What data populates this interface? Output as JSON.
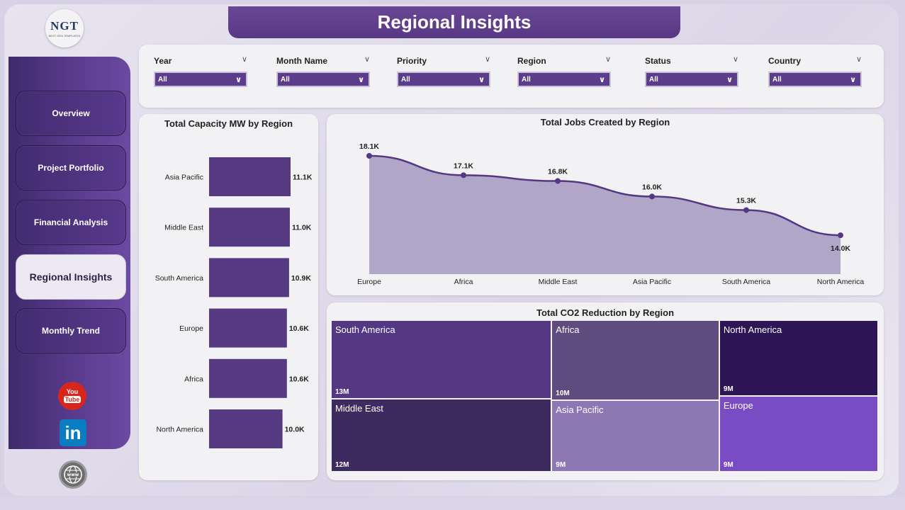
{
  "header": {
    "title": "Regional Insights",
    "logo_text": "NGT",
    "logo_subtext": "NEXT GEN TEMPLATES"
  },
  "sidebar": {
    "items": [
      {
        "label": "Overview",
        "active": false
      },
      {
        "label": "Project Portfolio",
        "active": false
      },
      {
        "label": "Financial Analysis",
        "active": false
      },
      {
        "label": "Regional Insights",
        "active": true
      },
      {
        "label": "Monthly Trend",
        "active": false
      }
    ],
    "social": [
      "youtube-icon",
      "linkedin-icon",
      "globe-icon"
    ]
  },
  "filters": [
    {
      "label": "Year",
      "value": "All"
    },
    {
      "label": "Month Name",
      "value": "All"
    },
    {
      "label": "Priority",
      "value": "All"
    },
    {
      "label": "Region",
      "value": "All"
    },
    {
      "label": "Status",
      "value": "All"
    },
    {
      "label": "Country",
      "value": "All"
    }
  ],
  "colors": {
    "primary": "#5b3d8c",
    "bar": "#563a82",
    "area": "#b0a6c8",
    "line": "#553883"
  },
  "chart_data": [
    {
      "type": "bar",
      "orientation": "horizontal",
      "title": "Total Capacity MW by Region",
      "categories": [
        "Asia Pacific",
        "Middle East",
        "South America",
        "Europe",
        "Africa",
        "North America"
      ],
      "values": [
        11100,
        11000,
        10900,
        10600,
        10600,
        10000
      ],
      "labels": [
        "11.1K",
        "11.0K",
        "10.9K",
        "10.6K",
        "10.6K",
        "10.0K"
      ]
    },
    {
      "type": "area",
      "title": "Total Jobs Created by Region",
      "categories": [
        "Europe",
        "Africa",
        "Middle East",
        "Asia Pacific",
        "South America",
        "North America"
      ],
      "values": [
        18100,
        17100,
        16800,
        16000,
        15300,
        14000
      ],
      "labels": [
        "18.1K",
        "17.1K",
        "16.8K",
        "16.0K",
        "15.3K",
        "14.0K"
      ]
    },
    {
      "type": "treemap",
      "title": "Total CO2 Reduction by Region",
      "items": [
        {
          "name": "South America",
          "value": 13,
          "label": "13M",
          "color": "#553883"
        },
        {
          "name": "Middle East",
          "value": 12,
          "label": "12M",
          "color": "#3d2a5f"
        },
        {
          "name": "Africa",
          "value": 10,
          "label": "10M",
          "color": "#5f4b7e"
        },
        {
          "name": "Asia Pacific",
          "value": 9,
          "label": "9M",
          "color": "#8d78b3"
        },
        {
          "name": "North America",
          "value": 9,
          "label": "9M",
          "color": "#2e1555"
        },
        {
          "name": "Europe",
          "value": 9,
          "label": "9M",
          "color": "#7a4cc4"
        }
      ]
    }
  ]
}
